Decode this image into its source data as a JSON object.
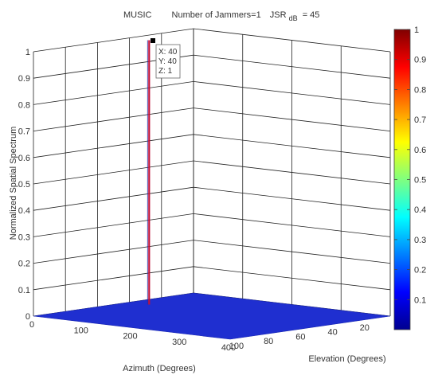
{
  "chart_data": {
    "type": "surface3d",
    "title": {
      "method": "MUSIC",
      "jammers": "Number of Jammers=1",
      "jsr_main": "JSR",
      "jsr_sub": "dB",
      "jsr_value": "= 45"
    },
    "xlabel": "Azimuth (Degrees)",
    "ylabel": "Elevation (Degrees)",
    "zlabel": "Normalized Spatial Spectrum",
    "xlim": [
      0,
      400
    ],
    "ylim": [
      0,
      100
    ],
    "zlim": [
      0,
      1
    ],
    "x_ticks": [
      "0",
      "100",
      "200",
      "300",
      "400"
    ],
    "y_ticks": [
      "0",
      "20",
      "40",
      "60",
      "80",
      "100"
    ],
    "z_ticks": [
      "0",
      "0.1",
      "0.2",
      "0.3",
      "0.4",
      "0.5",
      "0.6",
      "0.7",
      "0.8",
      "0.9",
      "1"
    ],
    "grid": true,
    "peak": {
      "x": 40,
      "y": 40,
      "z": 1
    },
    "floor_level": 0,
    "floor_color": "#1f2fd0",
    "peak_color": "#c0103a",
    "datatip": {
      "x_text": "X: 40",
      "y_text": "Y: 40",
      "z_text": "Z: 1"
    },
    "colorbar": {
      "min": 0,
      "max": 1,
      "ticks": [
        "0.1",
        "0.2",
        "0.3",
        "0.4",
        "0.5",
        "0.6",
        "0.7",
        "0.8",
        "0.9",
        "1"
      ],
      "colormap": "jet"
    }
  }
}
